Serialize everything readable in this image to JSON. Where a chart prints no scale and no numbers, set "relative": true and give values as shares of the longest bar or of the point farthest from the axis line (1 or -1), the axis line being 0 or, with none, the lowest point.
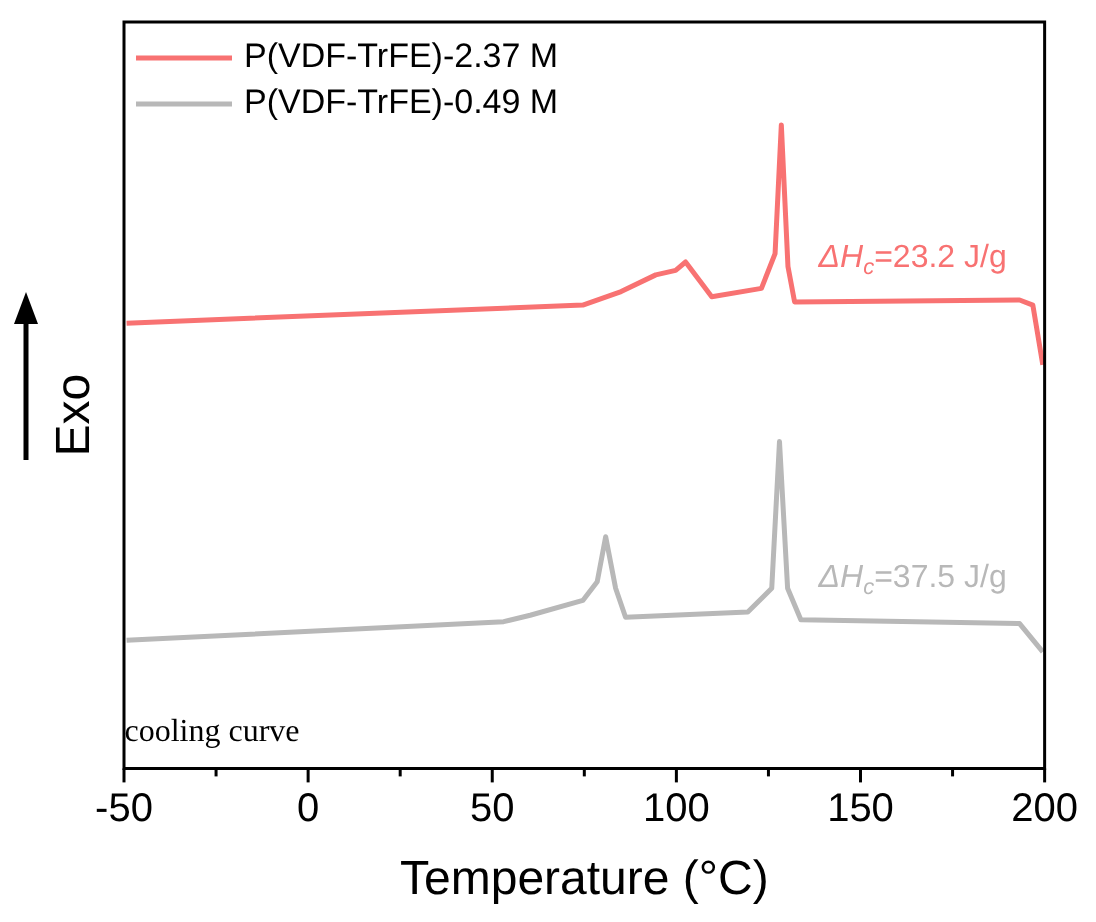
{
  "chart_data": {
    "type": "line",
    "relative": true,
    "xlabel": "Temperature (°C)",
    "ylabel": "Exo",
    "xlim": [
      -50,
      200
    ],
    "xticks": [
      -50,
      {
        "value": -25,
        "label": null
      },
      0,
      {
        "value": 25,
        "label": null
      },
      50,
      {
        "value": 75,
        "label": null
      },
      100,
      {
        "value": 125,
        "label": null
      },
      150,
      {
        "value": 175,
        "label": null
      },
      200
    ],
    "legend": "top left",
    "marker": "none",
    "grid": false,
    "series": [
      {
        "name": "P(VDF-TrFE)-2.37 M",
        "color": "#f87272",
        "x": [
          -49.3,
          74.6,
          85,
          94.4,
          99.8,
          102.5,
          109.6,
          123.1,
          126.8,
          128.5,
          130.3,
          132.1,
          193.2,
          196.8,
          199.5
        ],
        "values": [
          0.692,
          0.72,
          0.741,
          0.767,
          0.774,
          0.787,
          0.733,
          0.746,
          0.8,
          1.0,
          0.78,
          0.725,
          0.728,
          0.72,
          0.627
        ]
      },
      {
        "name": "P(VDF-TrFE)-0.49 M",
        "color": "#b8b8b8",
        "x": [
          -49.3,
          53.1,
          60.3,
          74.6,
          78.5,
          80.8,
          83.5,
          86.2,
          119.4,
          125.9,
          128.0,
          130.2,
          133.8,
          193.2,
          199.5
        ],
        "values": [
          0.199,
          0.228,
          0.238,
          0.261,
          0.29,
          0.36,
          0.28,
          0.235,
          0.243,
          0.28,
          0.508,
          0.28,
          0.231,
          0.225,
          0.181
        ]
      }
    ],
    "annotations": [
      "ΔH$_{c}$=23.2 J/g",
      "ΔH$_{c}$=37.5 J/g",
      "cooling curve"
    ]
  }
}
